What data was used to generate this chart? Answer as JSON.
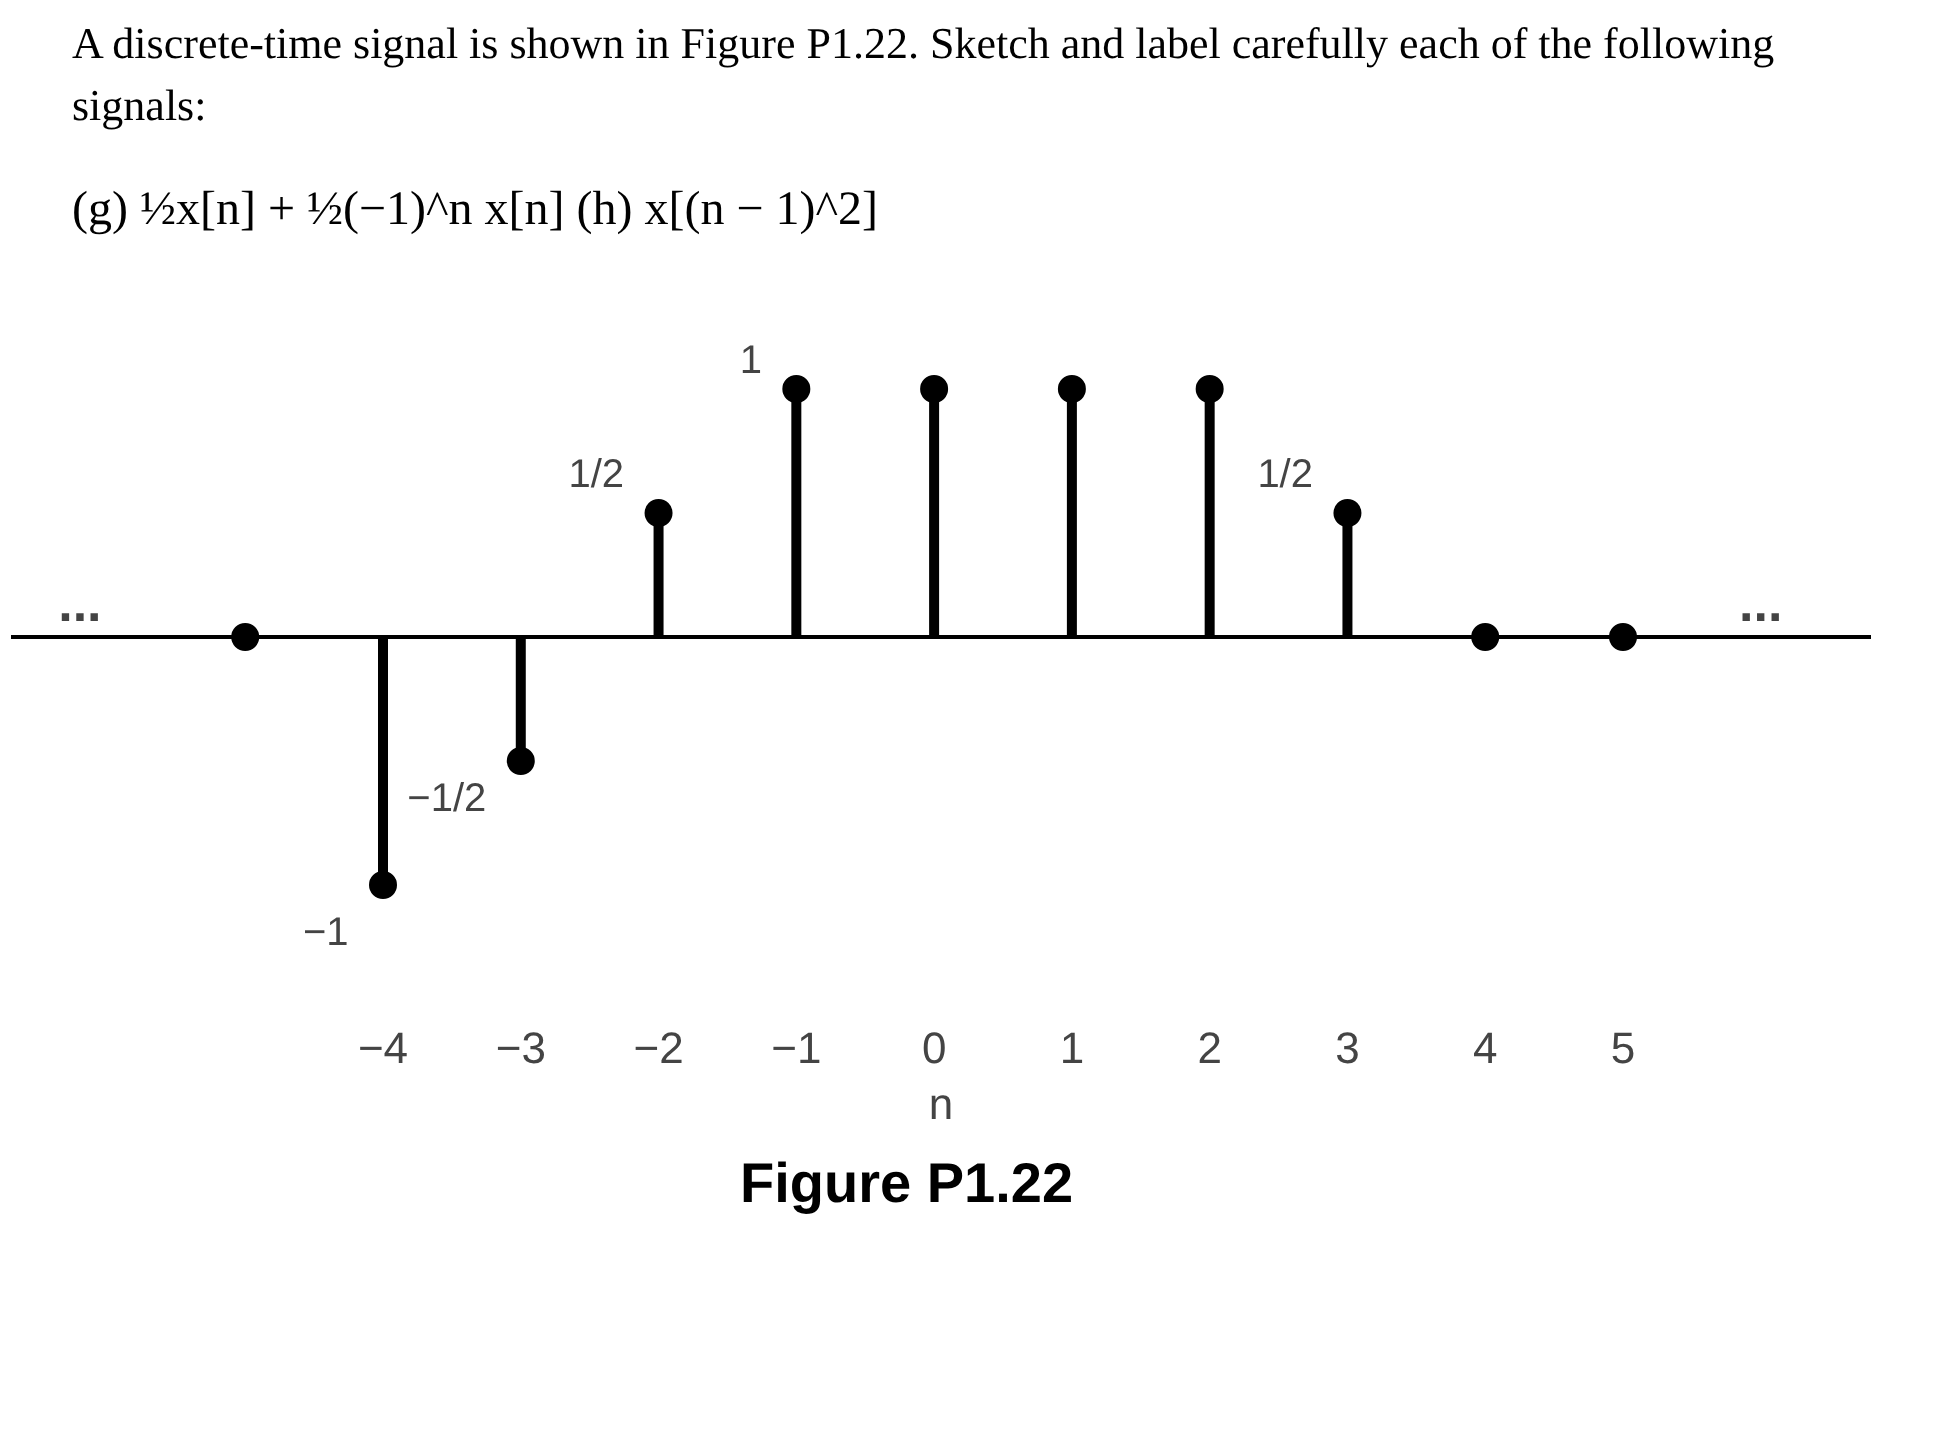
{
  "chart_data": {
    "type": "lollipop",
    "title": "Figure P1.22",
    "x": [
      -5,
      -4,
      -3,
      -2,
      -1,
      0,
      1,
      2,
      3,
      4,
      5
    ],
    "values": [
      0,
      -1,
      -0.5,
      0.5,
      1,
      1,
      1,
      1,
      0.5,
      0,
      0
    ],
    "value_labels": [
      null,
      "−1",
      "−1/2",
      "1/2",
      "1",
      null,
      null,
      null,
      "1/2",
      null,
      null
    ],
    "color": "#000000",
    "marker": "circle",
    "xlabel": "n",
    "xlim": [
      -6.7,
      6.8
    ],
    "xticks": [
      -4,
      -3,
      -2,
      -1,
      0,
      1,
      2,
      3,
      4,
      5
    ],
    "tick_labels": "x",
    "grid": false,
    "ref_lines": [
      {
        "axis": "y",
        "value": 0,
        "label": null
      }
    ],
    "annotations": [
      "A discrete-time signal is shown in Figure P1.22. Sketch and label carefully each of the following signals:",
      "(g) ½x[n] + ½(−1)^n x[n]     (h) x[(n − 1)^2]",
      "...",
      "..."
    ]
  }
}
